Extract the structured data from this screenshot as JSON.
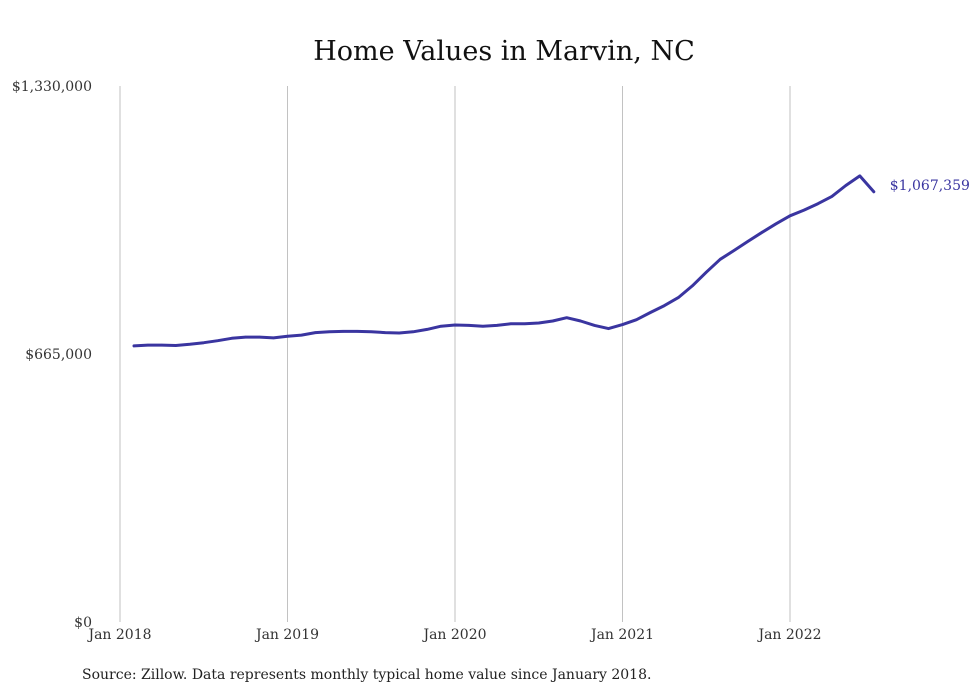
{
  "chart_data": {
    "type": "line",
    "title": "Home Values in Marvin, NC",
    "xlabel": "",
    "ylabel": "",
    "x_range": [
      "2018-01",
      "2022-07"
    ],
    "ylim": [
      0,
      1330000
    ],
    "y_ticks": [
      0,
      665000,
      1330000
    ],
    "y_tick_labels": [
      "$0",
      "$665,000",
      "$1,330,000"
    ],
    "x_ticks": [
      "2018-01",
      "2019-01",
      "2020-01",
      "2021-01",
      "2022-01"
    ],
    "x_tick_labels": [
      "Jan 2018",
      "Jan 2019",
      "Jan 2020",
      "Jan 2021",
      "Jan 2022"
    ],
    "grid": {
      "vertical": true,
      "horizontal": false
    },
    "legend": "none",
    "series": [
      {
        "color": "#3a35a0",
        "x": [
          "2018-02",
          "2018-03",
          "2018-04",
          "2018-05",
          "2018-06",
          "2018-07",
          "2018-08",
          "2018-09",
          "2018-10",
          "2018-11",
          "2018-12",
          "2019-01",
          "2019-02",
          "2019-03",
          "2019-04",
          "2019-05",
          "2019-06",
          "2019-07",
          "2019-08",
          "2019-09",
          "2019-10",
          "2019-11",
          "2019-12",
          "2020-01",
          "2020-02",
          "2020-03",
          "2020-04",
          "2020-05",
          "2020-06",
          "2020-07",
          "2020-08",
          "2020-09",
          "2020-10",
          "2020-11",
          "2020-12",
          "2021-01",
          "2021-02",
          "2021-03",
          "2021-04",
          "2021-05",
          "2021-06",
          "2021-07",
          "2021-08",
          "2021-09",
          "2021-10",
          "2021-11",
          "2021-12",
          "2022-01",
          "2022-02",
          "2022-03",
          "2022-04",
          "2022-05",
          "2022-06",
          "2022-07"
        ],
        "values": [
          685000,
          687000,
          687000,
          686000,
          689000,
          693000,
          698000,
          704000,
          707000,
          707000,
          705000,
          709000,
          712000,
          718000,
          720000,
          721000,
          721000,
          720000,
          718000,
          717000,
          720000,
          726000,
          734000,
          737000,
          736000,
          734000,
          736000,
          740000,
          740000,
          742000,
          747000,
          755000,
          747000,
          736000,
          728000,
          738000,
          750000,
          768000,
          785000,
          805000,
          834000,
          868000,
          900000,
          922000,
          945000,
          967000,
          988000,
          1008000,
          1022000,
          1038000,
          1056000,
          1083000,
          1107000,
          1067359
        ]
      }
    ],
    "end_label": "$1,067,359",
    "source_note": "Source: Zillow. Data represents monthly typical home value since January 2018."
  }
}
